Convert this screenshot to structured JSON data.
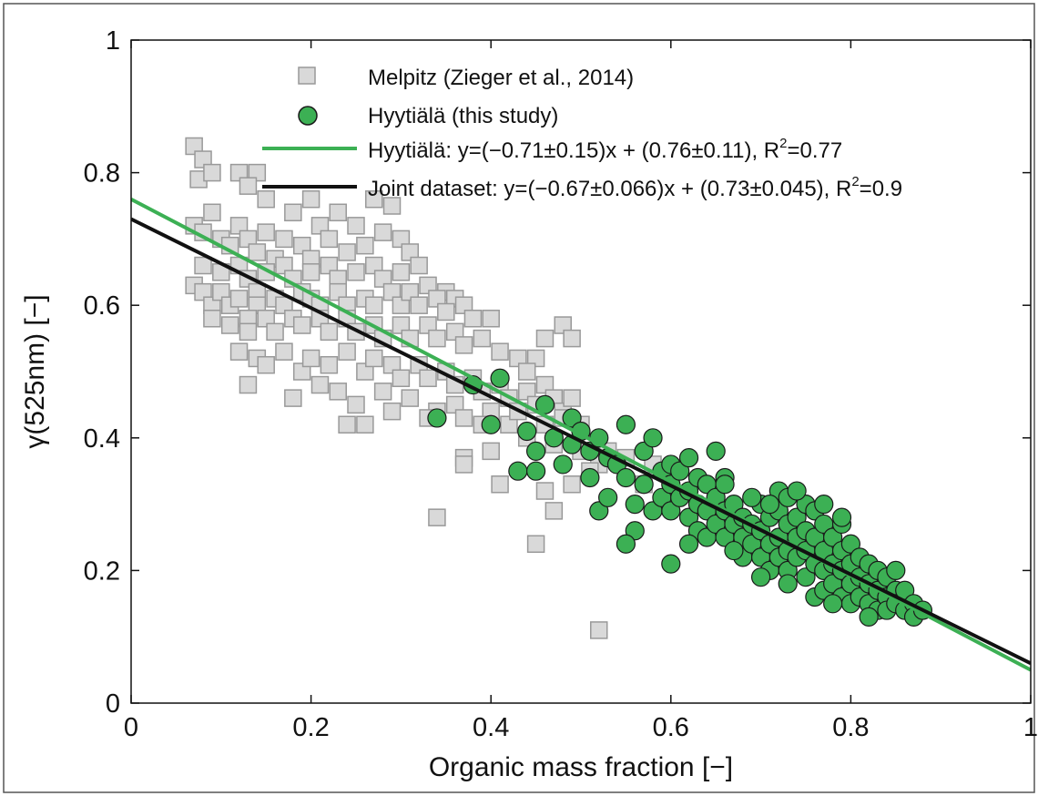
{
  "chart_data": {
    "type": "scatter",
    "xlabel": "Organic mass fraction [−]",
    "ylabel": "γ(525nm) [−]",
    "xlim": [
      0,
      1
    ],
    "ylim": [
      0,
      1
    ],
    "x_ticks": [
      "0",
      "0.2",
      "0.4",
      "0.6",
      "0.8",
      "1"
    ],
    "y_ticks": [
      "0",
      "0.2",
      "0.4",
      "0.6",
      "0.8",
      "1"
    ],
    "x_tick_values": [
      0,
      0.2,
      0.4,
      0.6,
      0.8,
      1
    ],
    "y_tick_values": [
      0,
      0.2,
      0.4,
      0.6,
      0.8,
      1
    ],
    "grid": false,
    "legend_position": "top-right",
    "legend": {
      "melpitz": "Melpitz (Zieger et al., 2014)",
      "hyytiala": "Hyytiälä (this study)",
      "fit_hyytiala_main": "Hyytiälä: y=(−0.71±0.15)x + (0.76±0.11), R",
      "fit_hyytiala_tail": "=0.77",
      "fit_joint_main": "Joint dataset: y=(−0.67±0.066)x + (0.73±0.045), R",
      "fit_joint_tail": "=0.9",
      "superscript": "2"
    },
    "series": [
      {
        "name": "Melpitz (Zieger et al., 2014)",
        "marker": "square",
        "color": "#d9d9d9",
        "edge_color": "#999999",
        "points": [
          [
            0.07,
            0.84
          ],
          [
            0.08,
            0.82
          ],
          [
            0.075,
            0.79
          ],
          [
            0.09,
            0.8
          ],
          [
            0.12,
            0.8
          ],
          [
            0.14,
            0.8
          ],
          [
            0.13,
            0.78
          ],
          [
            0.15,
            0.76
          ],
          [
            0.18,
            0.74
          ],
          [
            0.2,
            0.76
          ],
          [
            0.23,
            0.74
          ],
          [
            0.27,
            0.76
          ],
          [
            0.29,
            0.75
          ],
          [
            0.09,
            0.74
          ],
          [
            0.07,
            0.72
          ],
          [
            0.1,
            0.7
          ],
          [
            0.12,
            0.72
          ],
          [
            0.11,
            0.69
          ],
          [
            0.08,
            0.71
          ],
          [
            0.13,
            0.7
          ],
          [
            0.15,
            0.71
          ],
          [
            0.17,
            0.7
          ],
          [
            0.14,
            0.68
          ],
          [
            0.16,
            0.67
          ],
          [
            0.19,
            0.69
          ],
          [
            0.21,
            0.72
          ],
          [
            0.22,
            0.7
          ],
          [
            0.25,
            0.72
          ],
          [
            0.28,
            0.71
          ],
          [
            0.3,
            0.7
          ],
          [
            0.24,
            0.68
          ],
          [
            0.26,
            0.69
          ],
          [
            0.31,
            0.68
          ],
          [
            0.32,
            0.66
          ],
          [
            0.08,
            0.66
          ],
          [
            0.1,
            0.65
          ],
          [
            0.12,
            0.66
          ],
          [
            0.13,
            0.64
          ],
          [
            0.15,
            0.65
          ],
          [
            0.17,
            0.66
          ],
          [
            0.18,
            0.64
          ],
          [
            0.2,
            0.67
          ],
          [
            0.2,
            0.65
          ],
          [
            0.22,
            0.66
          ],
          [
            0.23,
            0.64
          ],
          [
            0.25,
            0.65
          ],
          [
            0.27,
            0.66
          ],
          [
            0.28,
            0.64
          ],
          [
            0.3,
            0.65
          ],
          [
            0.33,
            0.63
          ],
          [
            0.35,
            0.62
          ],
          [
            0.36,
            0.61
          ],
          [
            0.07,
            0.63
          ],
          [
            0.08,
            0.62
          ],
          [
            0.09,
            0.6
          ],
          [
            0.1,
            0.62
          ],
          [
            0.11,
            0.6
          ],
          [
            0.12,
            0.61
          ],
          [
            0.14,
            0.62
          ],
          [
            0.14,
            0.6
          ],
          [
            0.16,
            0.61
          ],
          [
            0.17,
            0.6
          ],
          [
            0.19,
            0.62
          ],
          [
            0.2,
            0.61
          ],
          [
            0.21,
            0.6
          ],
          [
            0.23,
            0.62
          ],
          [
            0.24,
            0.6
          ],
          [
            0.26,
            0.61
          ],
          [
            0.27,
            0.6
          ],
          [
            0.29,
            0.62
          ],
          [
            0.3,
            0.6
          ],
          [
            0.31,
            0.62
          ],
          [
            0.32,
            0.6
          ],
          [
            0.34,
            0.61
          ],
          [
            0.35,
            0.59
          ],
          [
            0.37,
            0.6
          ],
          [
            0.38,
            0.58
          ],
          [
            0.09,
            0.58
          ],
          [
            0.11,
            0.57
          ],
          [
            0.13,
            0.58
          ],
          [
            0.13,
            0.56
          ],
          [
            0.15,
            0.58
          ],
          [
            0.16,
            0.56
          ],
          [
            0.18,
            0.58
          ],
          [
            0.19,
            0.57
          ],
          [
            0.21,
            0.58
          ],
          [
            0.22,
            0.56
          ],
          [
            0.24,
            0.58
          ],
          [
            0.25,
            0.56
          ],
          [
            0.27,
            0.57
          ],
          [
            0.28,
            0.55
          ],
          [
            0.3,
            0.57
          ],
          [
            0.31,
            0.55
          ],
          [
            0.33,
            0.57
          ],
          [
            0.34,
            0.55
          ],
          [
            0.36,
            0.56
          ],
          [
            0.37,
            0.54
          ],
          [
            0.39,
            0.55
          ],
          [
            0.4,
            0.58
          ],
          [
            0.41,
            0.53
          ],
          [
            0.43,
            0.52
          ],
          [
            0.45,
            0.52
          ],
          [
            0.46,
            0.55
          ],
          [
            0.48,
            0.57
          ],
          [
            0.49,
            0.55
          ],
          [
            0.44,
            0.5
          ],
          [
            0.46,
            0.48
          ],
          [
            0.12,
            0.53
          ],
          [
            0.14,
            0.52
          ],
          [
            0.15,
            0.51
          ],
          [
            0.17,
            0.53
          ],
          [
            0.19,
            0.5
          ],
          [
            0.2,
            0.52
          ],
          [
            0.22,
            0.51
          ],
          [
            0.24,
            0.53
          ],
          [
            0.26,
            0.5
          ],
          [
            0.27,
            0.52
          ],
          [
            0.29,
            0.51
          ],
          [
            0.3,
            0.49
          ],
          [
            0.32,
            0.51
          ],
          [
            0.33,
            0.49
          ],
          [
            0.35,
            0.5
          ],
          [
            0.36,
            0.48
          ],
          [
            0.38,
            0.49
          ],
          [
            0.39,
            0.47
          ],
          [
            0.41,
            0.48
          ],
          [
            0.42,
            0.46
          ],
          [
            0.44,
            0.47
          ],
          [
            0.45,
            0.45
          ],
          [
            0.47,
            0.46
          ],
          [
            0.48,
            0.44
          ],
          [
            0.49,
            0.46
          ],
          [
            0.13,
            0.48
          ],
          [
            0.18,
            0.46
          ],
          [
            0.21,
            0.48
          ],
          [
            0.23,
            0.47
          ],
          [
            0.25,
            0.45
          ],
          [
            0.28,
            0.47
          ],
          [
            0.29,
            0.44
          ],
          [
            0.31,
            0.46
          ],
          [
            0.34,
            0.44
          ],
          [
            0.36,
            0.45
          ],
          [
            0.37,
            0.43
          ],
          [
            0.4,
            0.44
          ],
          [
            0.42,
            0.42
          ],
          [
            0.43,
            0.44
          ],
          [
            0.46,
            0.42
          ],
          [
            0.48,
            0.43
          ],
          [
            0.5,
            0.42
          ],
          [
            0.24,
            0.42
          ],
          [
            0.26,
            0.42
          ],
          [
            0.33,
            0.43
          ],
          [
            0.39,
            0.42
          ],
          [
            0.44,
            0.4
          ],
          [
            0.47,
            0.39
          ],
          [
            0.5,
            0.38
          ],
          [
            0.52,
            0.36
          ],
          [
            0.55,
            0.37
          ],
          [
            0.58,
            0.36
          ],
          [
            0.49,
            0.33
          ],
          [
            0.51,
            0.35
          ],
          [
            0.53,
            0.38
          ],
          [
            0.37,
            0.37
          ],
          [
            0.37,
            0.36
          ],
          [
            0.46,
            0.32
          ],
          [
            0.47,
            0.29
          ],
          [
            0.41,
            0.33
          ],
          [
            0.34,
            0.28
          ],
          [
            0.45,
            0.24
          ],
          [
            0.52,
            0.11
          ],
          [
            0.57,
            0.33
          ],
          [
            0.4,
            0.38
          ]
        ]
      },
      {
        "name": "Hyytiälä (this study)",
        "marker": "circle",
        "color": "#3cb054",
        "edge_color": "#1a1a1a",
        "points": [
          [
            0.34,
            0.43
          ],
          [
            0.38,
            0.48
          ],
          [
            0.41,
            0.49
          ],
          [
            0.4,
            0.42
          ],
          [
            0.43,
            0.35
          ],
          [
            0.45,
            0.35
          ],
          [
            0.44,
            0.41
          ],
          [
            0.45,
            0.38
          ],
          [
            0.46,
            0.45
          ],
          [
            0.47,
            0.4
          ],
          [
            0.48,
            0.36
          ],
          [
            0.49,
            0.43
          ],
          [
            0.49,
            0.39
          ],
          [
            0.5,
            0.41
          ],
          [
            0.51,
            0.38
          ],
          [
            0.51,
            0.34
          ],
          [
            0.52,
            0.4
          ],
          [
            0.53,
            0.37
          ],
          [
            0.52,
            0.29
          ],
          [
            0.53,
            0.31
          ],
          [
            0.54,
            0.36
          ],
          [
            0.55,
            0.42
          ],
          [
            0.55,
            0.34
          ],
          [
            0.56,
            0.3
          ],
          [
            0.56,
            0.26
          ],
          [
            0.55,
            0.24
          ],
          [
            0.57,
            0.38
          ],
          [
            0.57,
            0.33
          ],
          [
            0.58,
            0.29
          ],
          [
            0.58,
            0.4
          ],
          [
            0.59,
            0.35
          ],
          [
            0.59,
            0.31
          ],
          [
            0.6,
            0.36
          ],
          [
            0.6,
            0.33
          ],
          [
            0.6,
            0.29
          ],
          [
            0.6,
            0.21
          ],
          [
            0.61,
            0.35
          ],
          [
            0.61,
            0.31
          ],
          [
            0.62,
            0.32
          ],
          [
            0.62,
            0.28
          ],
          [
            0.62,
            0.37
          ],
          [
            0.63,
            0.34
          ],
          [
            0.63,
            0.3
          ],
          [
            0.63,
            0.26
          ],
          [
            0.64,
            0.33
          ],
          [
            0.64,
            0.29
          ],
          [
            0.64,
            0.25
          ],
          [
            0.65,
            0.38
          ],
          [
            0.65,
            0.31
          ],
          [
            0.65,
            0.27
          ],
          [
            0.66,
            0.34
          ],
          [
            0.66,
            0.29
          ],
          [
            0.66,
            0.25
          ],
          [
            0.67,
            0.3
          ],
          [
            0.67,
            0.27
          ],
          [
            0.68,
            0.28
          ],
          [
            0.68,
            0.25
          ],
          [
            0.68,
            0.22
          ],
          [
            0.69,
            0.27
          ],
          [
            0.69,
            0.24
          ],
          [
            0.7,
            0.3
          ],
          [
            0.7,
            0.26
          ],
          [
            0.7,
            0.22
          ],
          [
            0.71,
            0.28
          ],
          [
            0.71,
            0.24
          ],
          [
            0.71,
            0.2
          ],
          [
            0.72,
            0.32
          ],
          [
            0.72,
            0.29
          ],
          [
            0.72,
            0.25
          ],
          [
            0.72,
            0.22
          ],
          [
            0.73,
            0.31
          ],
          [
            0.73,
            0.27
          ],
          [
            0.73,
            0.23
          ],
          [
            0.73,
            0.2
          ],
          [
            0.74,
            0.28
          ],
          [
            0.74,
            0.25
          ],
          [
            0.74,
            0.22
          ],
          [
            0.75,
            0.3
          ],
          [
            0.75,
            0.26
          ],
          [
            0.75,
            0.23
          ],
          [
            0.75,
            0.19
          ],
          [
            0.76,
            0.29
          ],
          [
            0.76,
            0.25
          ],
          [
            0.76,
            0.21
          ],
          [
            0.76,
            0.16
          ],
          [
            0.77,
            0.27
          ],
          [
            0.77,
            0.23
          ],
          [
            0.77,
            0.2
          ],
          [
            0.77,
            0.17
          ],
          [
            0.78,
            0.25
          ],
          [
            0.78,
            0.21
          ],
          [
            0.78,
            0.18
          ],
          [
            0.79,
            0.27
          ],
          [
            0.79,
            0.23
          ],
          [
            0.79,
            0.2
          ],
          [
            0.79,
            0.16
          ],
          [
            0.8,
            0.24
          ],
          [
            0.8,
            0.21
          ],
          [
            0.8,
            0.18
          ],
          [
            0.8,
            0.15
          ],
          [
            0.81,
            0.22
          ],
          [
            0.81,
            0.19
          ],
          [
            0.81,
            0.16
          ],
          [
            0.82,
            0.21
          ],
          [
            0.82,
            0.18
          ],
          [
            0.82,
            0.15
          ],
          [
            0.83,
            0.2
          ],
          [
            0.83,
            0.17
          ],
          [
            0.83,
            0.14
          ],
          [
            0.84,
            0.19
          ],
          [
            0.84,
            0.16
          ],
          [
            0.84,
            0.14
          ],
          [
            0.85,
            0.2
          ],
          [
            0.85,
            0.17
          ],
          [
            0.85,
            0.15
          ],
          [
            0.86,
            0.17
          ],
          [
            0.86,
            0.14
          ],
          [
            0.87,
            0.15
          ],
          [
            0.87,
            0.13
          ],
          [
            0.88,
            0.14
          ],
          [
            0.66,
            0.33
          ],
          [
            0.69,
            0.31
          ],
          [
            0.71,
            0.3
          ],
          [
            0.74,
            0.32
          ],
          [
            0.77,
            0.3
          ],
          [
            0.79,
            0.28
          ],
          [
            0.62,
            0.24
          ],
          [
            0.67,
            0.23
          ],
          [
            0.7,
            0.19
          ],
          [
            0.73,
            0.18
          ],
          [
            0.78,
            0.15
          ],
          [
            0.82,
            0.13
          ]
        ]
      }
    ],
    "lines": [
      {
        "name": "Hyytiälä fit",
        "slope": -0.71,
        "intercept": 0.76,
        "r2": 0.77,
        "color": "#3cb054"
      },
      {
        "name": "Joint dataset fit",
        "slope": -0.67,
        "intercept": 0.73,
        "r2": 0.9,
        "color": "#111111"
      }
    ]
  }
}
